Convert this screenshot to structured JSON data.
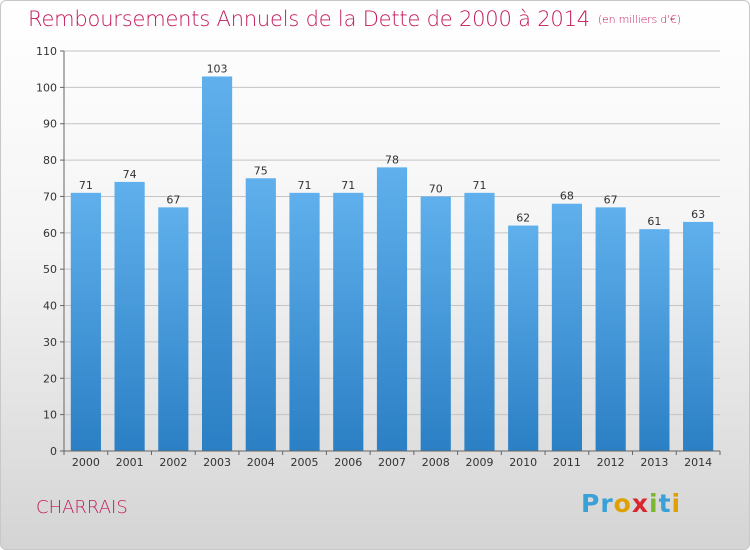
{
  "header": {
    "title": "Remboursements Annuels de la Dette de 2000 à 2014",
    "unit": "(en milliers d'€)"
  },
  "footer": {
    "commune": "CHARRAIS",
    "logo_text": "Proxiti",
    "logo_letters": [
      {
        "ch": "P",
        "color": "#3aa0d8"
      },
      {
        "ch": "r",
        "color": "#3aa0d8"
      },
      {
        "ch": "o",
        "color": "#e0a000"
      },
      {
        "ch": "x",
        "color": "#d9272e"
      },
      {
        "ch": "i",
        "color": "#7cb82f"
      },
      {
        "ch": "t",
        "color": "#3aa0d8"
      },
      {
        "ch": "i",
        "color": "#e0a000"
      }
    ]
  },
  "colors": {
    "title": "#c2185b",
    "bar_top": "#5fb0ec",
    "bar_bottom": "#2b7fc4"
  },
  "chart_data": {
    "type": "bar",
    "title": "Remboursements Annuels de la Dette de 2000 à 2014",
    "xlabel": "",
    "ylabel": "",
    "categories": [
      "2000",
      "2001",
      "2002",
      "2003",
      "2004",
      "2005",
      "2006",
      "2007",
      "2008",
      "2009",
      "2010",
      "2011",
      "2012",
      "2013",
      "2014"
    ],
    "values": [
      71,
      74,
      67,
      103,
      75,
      71,
      71,
      78,
      70,
      71,
      62,
      68,
      67,
      61,
      63
    ],
    "ylim": [
      0,
      110
    ],
    "yticks": [
      0,
      10,
      20,
      30,
      40,
      50,
      60,
      70,
      80,
      90,
      100,
      110
    ],
    "grid": true,
    "legend": "none"
  }
}
